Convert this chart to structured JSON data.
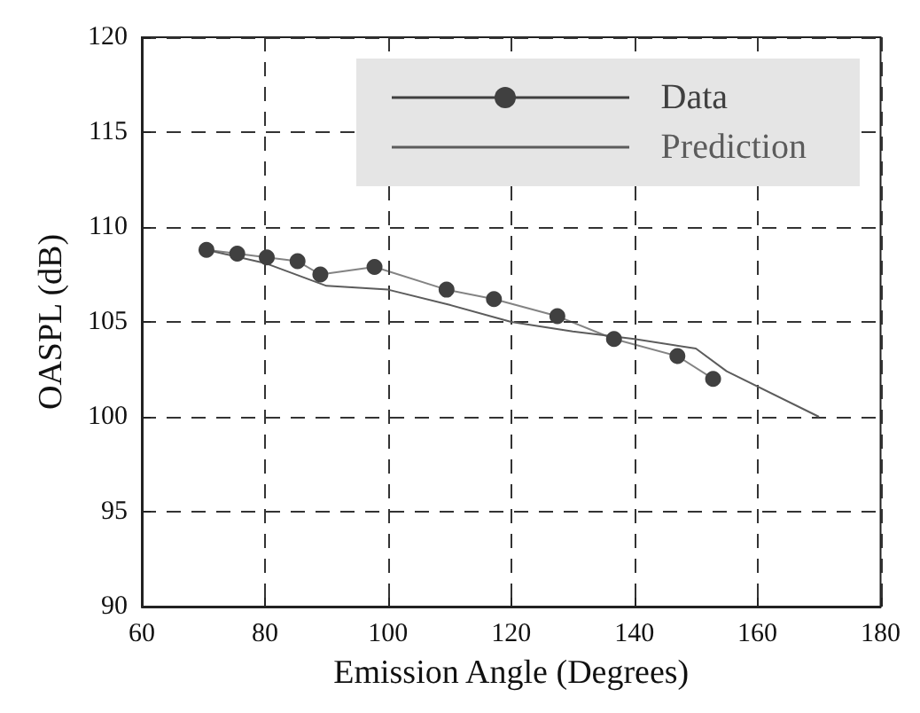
{
  "chart_data": {
    "type": "line",
    "xlabel": "Emission Angle (Degrees)",
    "ylabel": "OASPL (dB)",
    "xlim": [
      60,
      180
    ],
    "xticks": [
      60,
      80,
      100,
      120,
      140,
      160,
      180
    ],
    "ylim": [
      90,
      120
    ],
    "yticks": [
      90,
      95,
      100,
      105,
      110,
      115,
      120
    ],
    "grid": true,
    "legend": "top right",
    "series": [
      {
        "name": "Data",
        "color": "#404040",
        "marker": "circle",
        "x": [
          70.5,
          75.5,
          80.3,
          85.3,
          89,
          97.8,
          109.5,
          117.2,
          127.5,
          136.7,
          147,
          152.8
        ],
        "values": [
          108.8,
          108.6,
          108.4,
          108.2,
          107.5,
          107.9,
          106.7,
          106.2,
          105.3,
          104.1,
          103.2,
          102.0
        ]
      },
      {
        "name": "Prediction",
        "color": "#5c5c5c",
        "marker": "none",
        "x": [
          70.5,
          80,
          90,
          100,
          110,
          120,
          130,
          140,
          150,
          155,
          170
        ],
        "values": [
          108.8,
          108.1,
          106.9,
          106.7,
          105.9,
          105.0,
          104.5,
          104.1,
          103.6,
          102.4,
          100.0
        ]
      }
    ]
  }
}
